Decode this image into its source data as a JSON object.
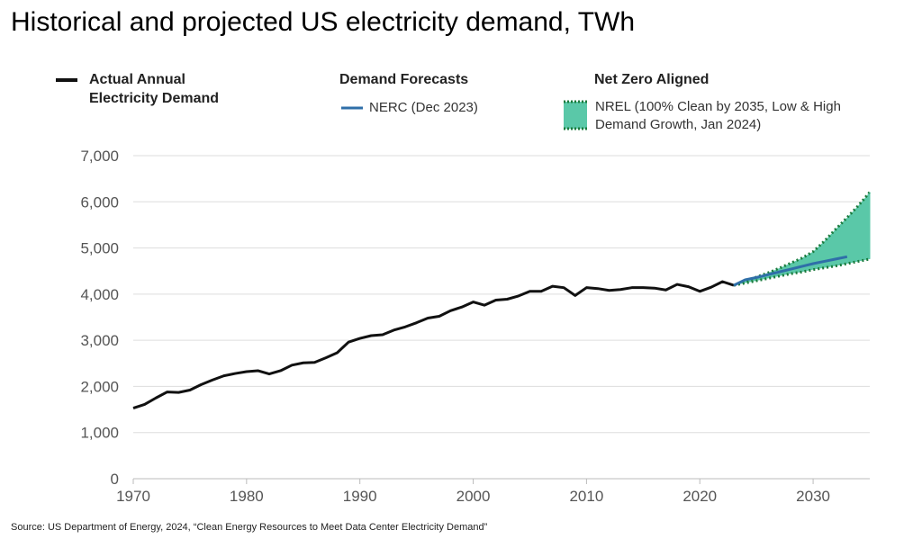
{
  "title": "Historical and projected US electricity demand, TWh",
  "source": "Source: US Department of Energy, 2024, “Clean Energy Resources to Meet Data Center Electricity Demand”",
  "legend": {
    "actual_line1": "Actual Annual",
    "actual_line2": "Electricity Demand",
    "forecasts_head": "Demand Forecasts",
    "nerc_label": "NERC (Dec 2023)",
    "netzero_head": "Net Zero Aligned",
    "nrel_line1": "NREL (100% Clean by 2035, Low & High",
    "nrel_line2": "Demand Growth, Jan 2024)"
  },
  "colors": {
    "actual": "#111111",
    "nerc": "#2f6fa8",
    "nrel_fill": "#5ac8a8",
    "nrel_border": "#1a7a3c",
    "grid": "#dddddd",
    "tick": "#555555"
  },
  "chart_data": {
    "type": "line",
    "title": "Historical and projected US electricity demand, TWh",
    "xlim": [
      1970,
      2035
    ],
    "ylim": [
      0,
      7000
    ],
    "x_ticks": [
      1970,
      1980,
      1990,
      2000,
      2010,
      2020,
      2030
    ],
    "x_tick_labels": [
      "1970",
      "1980",
      "1990",
      "2000",
      "2010",
      "2020",
      "2030"
    ],
    "y_ticks": [
      0,
      1000,
      2000,
      3000,
      4000,
      5000,
      6000,
      7000
    ],
    "y_tick_labels": [
      "0",
      "1,000",
      "2,000",
      "3,000",
      "4,000",
      "5,000",
      "6,000",
      "7,000"
    ],
    "grid": true,
    "series": [
      {
        "name": "Actual Annual Electricity Demand",
        "x": [
          1970,
          1971,
          1972,
          1973,
          1974,
          1975,
          1976,
          1977,
          1978,
          1979,
          1980,
          1981,
          1982,
          1983,
          1984,
          1985,
          1986,
          1987,
          1988,
          1989,
          1990,
          1991,
          1992,
          1993,
          1994,
          1995,
          1996,
          1997,
          1998,
          1999,
          2000,
          2001,
          2002,
          2003,
          2004,
          2005,
          2006,
          2007,
          2008,
          2009,
          2010,
          2011,
          2012,
          2013,
          2014,
          2015,
          2016,
          2017,
          2018,
          2019,
          2020,
          2021,
          2022,
          2023
        ],
        "y": [
          1530,
          1610,
          1750,
          1880,
          1870,
          1920,
          2040,
          2140,
          2230,
          2280,
          2320,
          2340,
          2270,
          2340,
          2460,
          2510,
          2520,
          2620,
          2730,
          2960,
          3040,
          3100,
          3120,
          3220,
          3290,
          3380,
          3480,
          3520,
          3640,
          3720,
          3830,
          3760,
          3870,
          3890,
          3960,
          4060,
          4060,
          4170,
          4140,
          3970,
          4140,
          4120,
          4080,
          4100,
          4140,
          4140,
          4130,
          4090,
          4210,
          4160,
          4060,
          4150,
          4270,
          4190
        ]
      },
      {
        "name": "NERC (Dec 2023)",
        "x": [
          2023,
          2024,
          2025,
          2026,
          2027,
          2028,
          2029,
          2030,
          2031,
          2032,
          2033
        ],
        "y": [
          4190,
          4310,
          4360,
          4420,
          4480,
          4540,
          4600,
          4660,
          4710,
          4760,
          4810
        ]
      },
      {
        "name": "NREL (100% Clean by 2035, Low & High Demand Growth, Jan 2024)",
        "x": [
          2023,
          2024,
          2025,
          2026,
          2027,
          2028,
          2029,
          2030,
          2031,
          2032,
          2033,
          2034,
          2035
        ],
        "low": [
          4190,
          4240,
          4290,
          4340,
          4390,
          4440,
          4480,
          4530,
          4570,
          4610,
          4660,
          4710,
          4760
        ],
        "high": [
          4190,
          4280,
          4370,
          4460,
          4560,
          4670,
          4780,
          4920,
          5150,
          5410,
          5660,
          5920,
          6210
        ]
      }
    ]
  }
}
